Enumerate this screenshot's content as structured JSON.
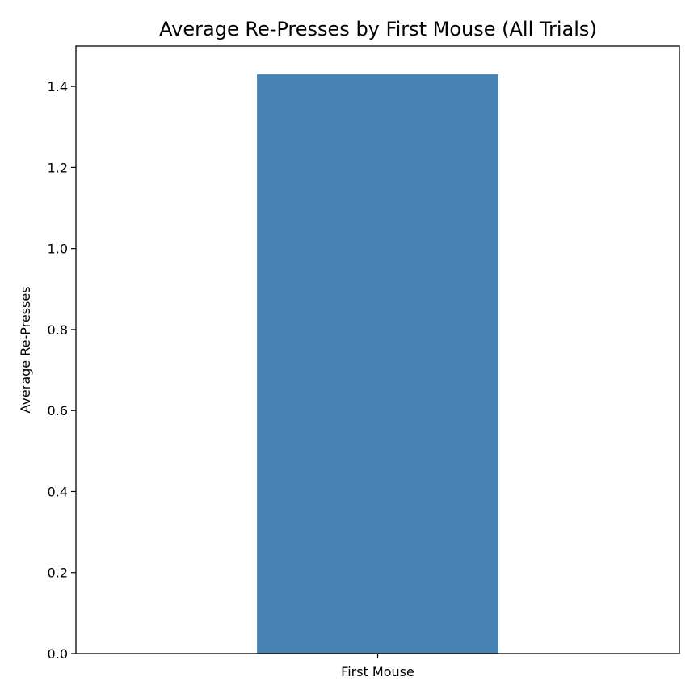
{
  "chart_data": {
    "type": "bar",
    "title": "Average Re-Presses by First Mouse (All Trials)",
    "xlabel": "",
    "ylabel": "Average Re-Presses",
    "categories": [
      "First Mouse"
    ],
    "values": [
      1.43
    ],
    "ylim": [
      0,
      1.5
    ],
    "yticks": [
      0.0,
      0.2,
      0.4,
      0.6,
      0.8,
      1.0,
      1.2,
      1.4
    ],
    "ytick_labels": [
      "0.0",
      "0.2",
      "0.4",
      "0.6",
      "0.8",
      "1.0",
      "1.2",
      "1.4"
    ],
    "grid": false,
    "bar_color": "#4682b4"
  }
}
